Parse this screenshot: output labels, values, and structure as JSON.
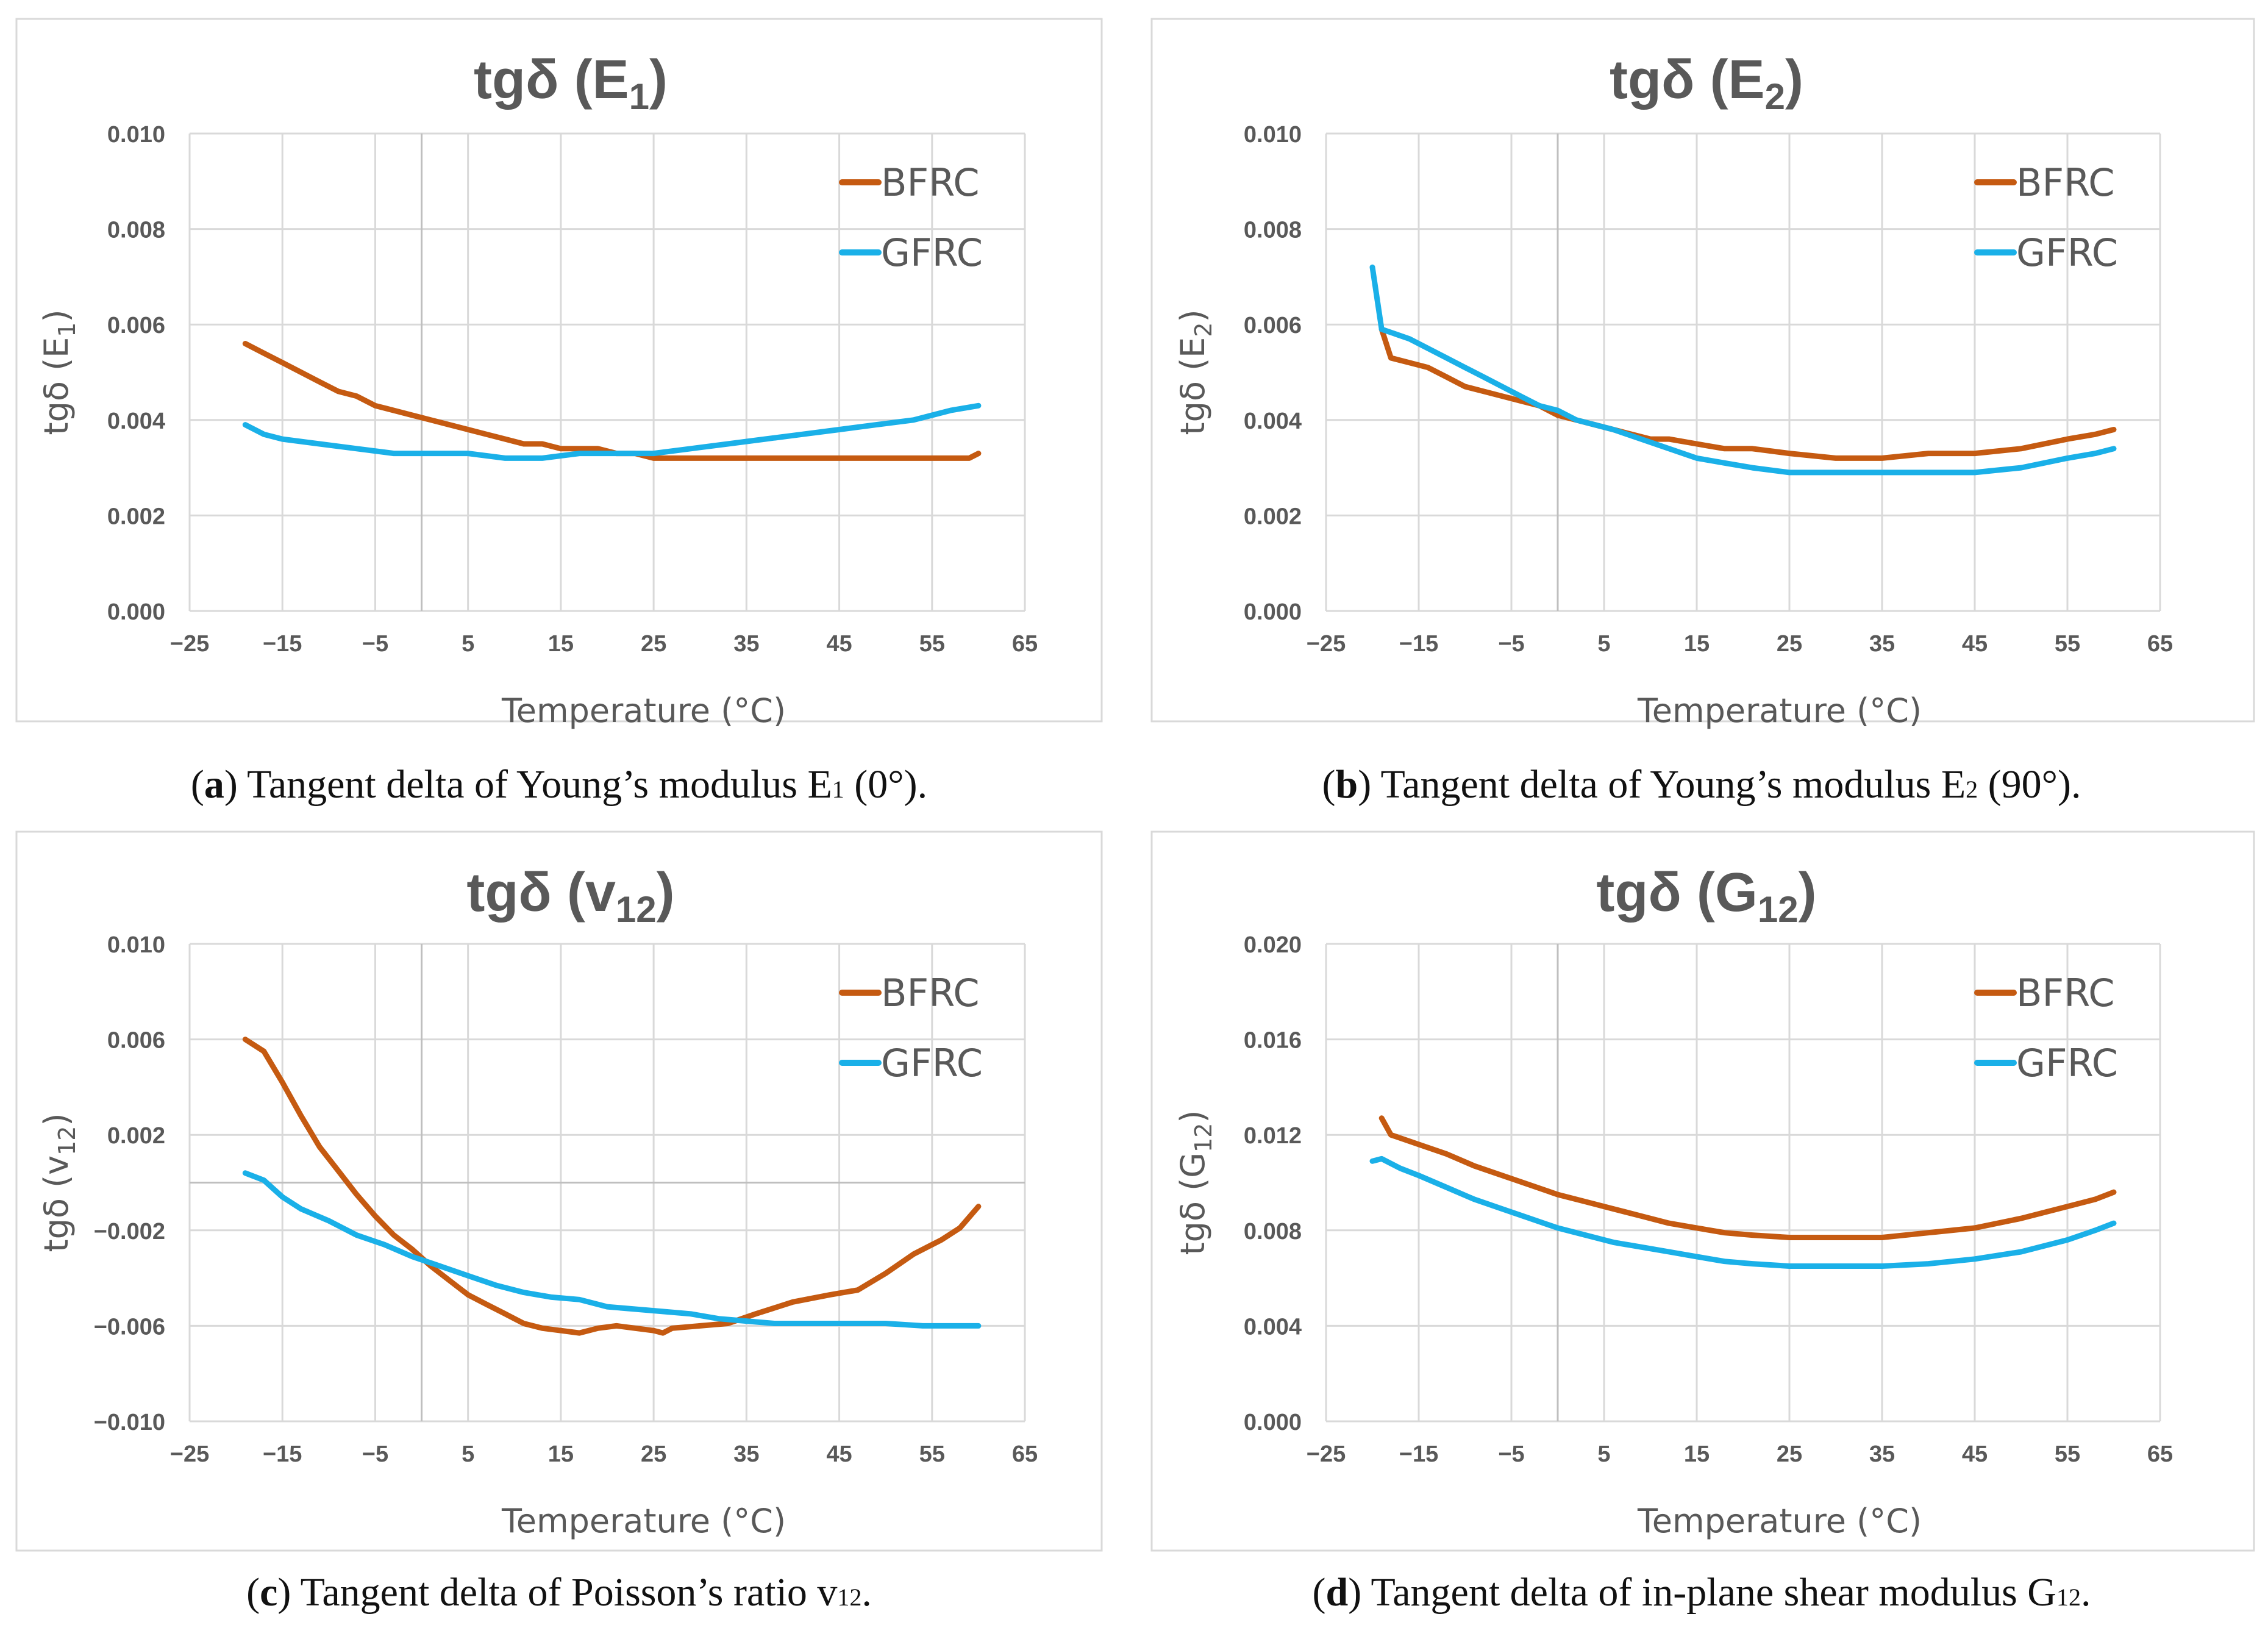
{
  "chart_data": [
    {
      "type": "line",
      "title": "tgδ (E",
      "title_sub": "1",
      "title_end": ")",
      "xlabel": "Temperature (°C)",
      "ylabel": "tgδ (E",
      "ylabel_sub": "1",
      "ylabel_end": ")",
      "xlim": [
        -25,
        65
      ],
      "ylim": [
        0.0,
        0.01
      ],
      "xticks": [
        "−25",
        "−15",
        "−5",
        "5",
        "15",
        "25",
        "35",
        "45",
        "55",
        "65"
      ],
      "yticks": [
        "0.000",
        "0.002",
        "0.004",
        "0.006",
        "0.008",
        "0.010"
      ],
      "reference_x": 0,
      "legend_position": "top-right",
      "caption_label": "a",
      "caption_text": " Tangent delta of Young’s modulus E",
      "caption_sub": "1",
      "caption_end": " (0°).",
      "series": [
        {
          "name": "BFRC",
          "color": "#c55a11",
          "x": [
            -19,
            -17,
            -15,
            -13,
            -11,
            -9,
            -7,
            -5,
            -3,
            -1,
            1,
            3,
            5,
            7,
            9,
            11,
            13,
            15,
            17,
            19,
            21,
            23,
            25,
            30,
            35,
            40,
            45,
            50,
            55,
            59,
            60
          ],
          "y": [
            0.0056,
            0.0054,
            0.0052,
            0.005,
            0.0048,
            0.0046,
            0.0045,
            0.0043,
            0.0042,
            0.0041,
            0.004,
            0.0039,
            0.0038,
            0.0037,
            0.0036,
            0.0035,
            0.0035,
            0.0034,
            0.0034,
            0.0034,
            0.0033,
            0.0033,
            0.0032,
            0.0032,
            0.0032,
            0.0032,
            0.0032,
            0.0032,
            0.0032,
            0.0032,
            0.0033
          ]
        },
        {
          "name": "GFRC",
          "color": "#1ab0e8",
          "x": [
            -19,
            -17,
            -15,
            -11,
            -7,
            -3,
            1,
            5,
            9,
            13,
            17,
            21,
            25,
            29,
            33,
            37,
            41,
            45,
            49,
            53,
            57,
            60
          ],
          "y": [
            0.0039,
            0.0037,
            0.0036,
            0.0035,
            0.0034,
            0.0033,
            0.0033,
            0.0033,
            0.0032,
            0.0032,
            0.0033,
            0.0033,
            0.0033,
            0.0034,
            0.0035,
            0.0036,
            0.0037,
            0.0038,
            0.0039,
            0.004,
            0.0042,
            0.0043
          ]
        }
      ]
    },
    {
      "type": "line",
      "title": "tgδ (E",
      "title_sub": "2",
      "title_end": ")",
      "xlabel": "Temperature (°C)",
      "ylabel": "tgδ (E",
      "ylabel_sub": "2",
      "ylabel_end": ")",
      "xlim": [
        -25,
        65
      ],
      "ylim": [
        0.0,
        0.01
      ],
      "xticks": [
        "−25",
        "−15",
        "−5",
        "5",
        "15",
        "25",
        "35",
        "45",
        "55",
        "65"
      ],
      "yticks": [
        "0.000",
        "0.002",
        "0.004",
        "0.006",
        "0.008",
        "0.010"
      ],
      "reference_x": 0,
      "legend_position": "top-right",
      "caption_label": "b",
      "caption_text": " Tangent delta of Young’s modulus E",
      "caption_sub": "2",
      "caption_end": " (90°).",
      "series": [
        {
          "name": "BFRC",
          "color": "#c55a11",
          "x": [
            -19,
            -18,
            -16,
            -14,
            -12,
            -10,
            -8,
            -6,
            -4,
            -2,
            0,
            2,
            4,
            6,
            8,
            10,
            12,
            15,
            18,
            21,
            25,
            30,
            35,
            40,
            45,
            50,
            55,
            58,
            60
          ],
          "y": [
            0.0059,
            0.0053,
            0.0052,
            0.0051,
            0.0049,
            0.0047,
            0.0046,
            0.0045,
            0.0044,
            0.0043,
            0.0041,
            0.004,
            0.0039,
            0.0038,
            0.0037,
            0.0036,
            0.0036,
            0.0035,
            0.0034,
            0.0034,
            0.0033,
            0.0032,
            0.0032,
            0.0033,
            0.0033,
            0.0034,
            0.0036,
            0.0037,
            0.0038
          ]
        },
        {
          "name": "GFRC",
          "color": "#1ab0e8",
          "x": [
            -20,
            -19,
            -16,
            -14,
            -12,
            -10,
            -8,
            -6,
            -4,
            -2,
            0,
            2,
            4,
            6,
            9,
            12,
            15,
            18,
            21,
            25,
            30,
            35,
            40,
            45,
            50,
            55,
            58,
            60
          ],
          "y": [
            0.0072,
            0.0059,
            0.0057,
            0.0055,
            0.0053,
            0.0051,
            0.0049,
            0.0047,
            0.0045,
            0.0043,
            0.0042,
            0.004,
            0.0039,
            0.0038,
            0.0036,
            0.0034,
            0.0032,
            0.0031,
            0.003,
            0.0029,
            0.0029,
            0.0029,
            0.0029,
            0.0029,
            0.003,
            0.0032,
            0.0033,
            0.0034
          ]
        }
      ]
    },
    {
      "type": "line",
      "title": "tgδ (v",
      "title_sub": "12",
      "title_end": ")",
      "xlabel": "Temperature (°C)",
      "ylabel": "tgδ (v",
      "ylabel_sub": "12",
      "ylabel_end": ")",
      "xlim": [
        -25,
        65
      ],
      "ylim": [
        -0.01,
        0.01
      ],
      "xticks": [
        "−25",
        "−15",
        "−5",
        "5",
        "15",
        "25",
        "35",
        "45",
        "55",
        "65"
      ],
      "yticks": [
        "−0.010",
        "−0.006",
        "−0.002",
        "0.002",
        "0.006",
        "0.010"
      ],
      "reference_x": 0,
      "reference_y": 0,
      "legend_position": "top-right",
      "caption_label": "c",
      "caption_text": " Tangent delta of Poisson’s ratio v",
      "caption_sub": "12",
      "caption_end": ".",
      "series": [
        {
          "name": "BFRC",
          "color": "#c55a11",
          "x": [
            -19,
            -17,
            -15,
            -13,
            -11,
            -9,
            -7,
            -5,
            -3,
            -1,
            1,
            3,
            5,
            7,
            9,
            11,
            13,
            15,
            17,
            19,
            21,
            23,
            25,
            26,
            27,
            30,
            33,
            36,
            40,
            44,
            47,
            50,
            53,
            56,
            58,
            60
          ],
          "y": [
            0.006,
            0.0055,
            0.0042,
            0.0028,
            0.0015,
            0.0005,
            -0.0005,
            -0.0014,
            -0.0022,
            -0.0028,
            -0.0035,
            -0.0041,
            -0.0047,
            -0.0051,
            -0.0055,
            -0.0059,
            -0.0061,
            -0.0062,
            -0.0063,
            -0.0061,
            -0.006,
            -0.0061,
            -0.0062,
            -0.0063,
            -0.0061,
            -0.006,
            -0.0059,
            -0.0055,
            -0.005,
            -0.0047,
            -0.0045,
            -0.0038,
            -0.003,
            -0.0024,
            -0.0019,
            -0.001
          ]
        },
        {
          "name": "GFRC",
          "color": "#1ab0e8",
          "x": [
            -19,
            -17,
            -15,
            -13,
            -10,
            -7,
            -4,
            -1,
            2,
            5,
            8,
            11,
            14,
            17,
            20,
            23,
            26,
            29,
            32,
            35,
            38,
            42,
            46,
            50,
            54,
            58,
            60
          ],
          "y": [
            0.0004,
            0.0001,
            -0.0006,
            -0.0011,
            -0.0016,
            -0.0022,
            -0.0026,
            -0.0031,
            -0.0035,
            -0.0039,
            -0.0043,
            -0.0046,
            -0.0048,
            -0.0049,
            -0.0052,
            -0.0053,
            -0.0054,
            -0.0055,
            -0.0057,
            -0.0058,
            -0.0059,
            -0.0059,
            -0.0059,
            -0.0059,
            -0.006,
            -0.006,
            -0.006
          ]
        }
      ]
    },
    {
      "type": "line",
      "title": "tgδ (G",
      "title_sub": "12",
      "title_end": ")",
      "xlabel": "Temperature (°C)",
      "ylabel": "tgδ (G",
      "ylabel_sub": "12",
      "ylabel_end": ")",
      "xlim": [
        -25,
        65
      ],
      "ylim": [
        0.0,
        0.02
      ],
      "xticks": [
        "−25",
        "−15",
        "−5",
        "5",
        "15",
        "25",
        "35",
        "45",
        "55",
        "65"
      ],
      "yticks": [
        "0.000",
        "0.004",
        "0.008",
        "0.012",
        "0.016",
        "0.020"
      ],
      "reference_x": 0,
      "legend_position": "top-right",
      "caption_label": "d",
      "caption_text": " Tangent delta of in-plane shear modulus G",
      "caption_sub": "12",
      "caption_end": ".",
      "series": [
        {
          "name": "BFRC",
          "color": "#c55a11",
          "x": [
            -19,
            -18,
            -15,
            -12,
            -9,
            -6,
            -3,
            0,
            3,
            6,
            9,
            12,
            15,
            18,
            21,
            25,
            30,
            35,
            40,
            45,
            50,
            55,
            58,
            60
          ],
          "y": [
            0.0127,
            0.012,
            0.0116,
            0.0112,
            0.0107,
            0.0103,
            0.0099,
            0.0095,
            0.0092,
            0.0089,
            0.0086,
            0.0083,
            0.0081,
            0.0079,
            0.0078,
            0.0077,
            0.0077,
            0.0077,
            0.0079,
            0.0081,
            0.0085,
            0.009,
            0.0093,
            0.0096
          ]
        },
        {
          "name": "GFRC",
          "color": "#1ab0e8",
          "x": [
            -20,
            -19,
            -17,
            -15,
            -12,
            -9,
            -6,
            -3,
            0,
            3,
            6,
            9,
            12,
            15,
            18,
            21,
            25,
            30,
            35,
            40,
            45,
            50,
            55,
            58,
            60
          ],
          "y": [
            0.0109,
            0.011,
            0.0106,
            0.0103,
            0.0098,
            0.0093,
            0.0089,
            0.0085,
            0.0081,
            0.0078,
            0.0075,
            0.0073,
            0.0071,
            0.0069,
            0.0067,
            0.0066,
            0.0065,
            0.0065,
            0.0065,
            0.0066,
            0.0068,
            0.0071,
            0.0076,
            0.008,
            0.0083
          ]
        }
      ]
    }
  ]
}
